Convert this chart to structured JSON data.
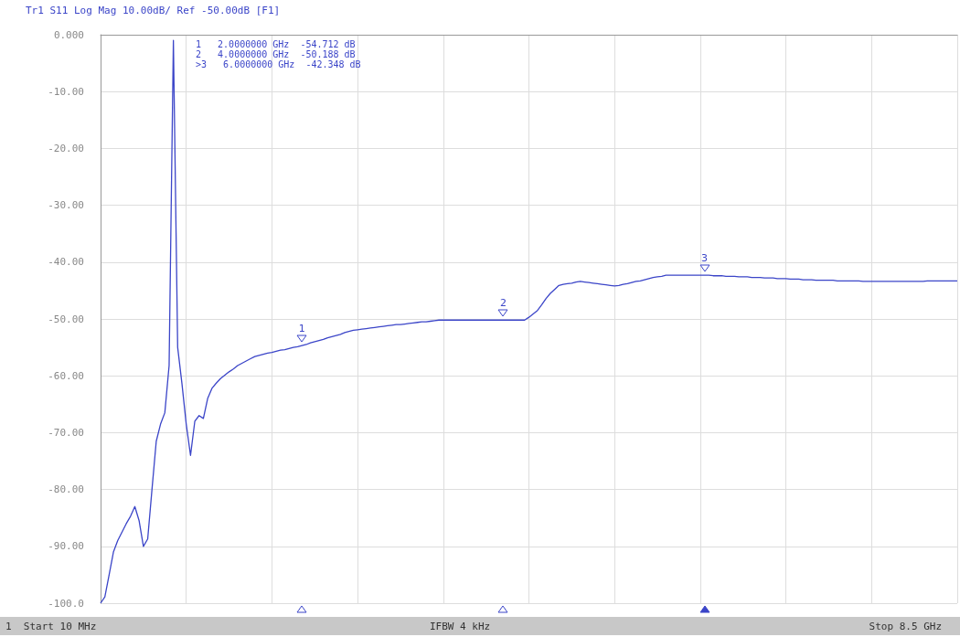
{
  "chart_data": {
    "type": "line",
    "categories": [
      null,
      null,
      null,
      null,
      null,
      null,
      null,
      null,
      null,
      null,
      null,
      null,
      null,
      null,
      null,
      null,
      null,
      null,
      null,
      null,
      null,
      null,
      null,
      null,
      null,
      null,
      null,
      null,
      null,
      null,
      null,
      null,
      null,
      null,
      null,
      null,
      null,
      null,
      null,
      null,
      null,
      null,
      null,
      null,
      null,
      null,
      null,
      null,
      null,
      null,
      null,
      null,
      null,
      null,
      null,
      null,
      null,
      null,
      null,
      null,
      null,
      null,
      null,
      null,
      null,
      null,
      null,
      null,
      null,
      null,
      null,
      null,
      null,
      null,
      null,
      null,
      null,
      null,
      null,
      null,
      null,
      null,
      null,
      null,
      null,
      null,
      null,
      null,
      null,
      null,
      null,
      null,
      null,
      null,
      null,
      null,
      null,
      null,
      null,
      null,
      null,
      null,
      null,
      null,
      null,
      null,
      null,
      null,
      null,
      null,
      null,
      null,
      null,
      null,
      null,
      null,
      null,
      null,
      null,
      null,
      null,
      null,
      null,
      null,
      null,
      null,
      null,
      null,
      null,
      null,
      null,
      null,
      null,
      null,
      null,
      null,
      null,
      null,
      null,
      null,
      null,
      null,
      null,
      null,
      null,
      null,
      null,
      null,
      null,
      null,
      null,
      null,
      null,
      null,
      null,
      null,
      null,
      null,
      null,
      null,
      null,
      null,
      null,
      null,
      null,
      null,
      null,
      null,
      null,
      null,
      null,
      null,
      null,
      null,
      null,
      null,
      null,
      null,
      null,
      null,
      null,
      null,
      null,
      null,
      null,
      null,
      null,
      null,
      null,
      null,
      null,
      null,
      null,
      null,
      null,
      null,
      null,
      null,
      null,
      null,
      null
    ],
    "series": [
      {
        "color": "#3b45c8",
        "values": [
          -100,
          -98.9,
          -95,
          -91,
          -89,
          -87.5,
          -86,
          -84.7,
          -83,
          -85.5,
          -90,
          -88.7,
          -80,
          -71.5,
          -68.5,
          -66.5,
          -58.2,
          -1,
          -55,
          -61.4,
          -68.5,
          -74,
          -68,
          -67,
          -67.5,
          -64,
          -62.2,
          -61.3,
          -60.5,
          -59.9,
          -59.3,
          -58.8,
          -58.2,
          -57.8,
          -57.4,
          -57.0,
          -56.6,
          -56.4,
          -56.2,
          -56.0,
          -55.9,
          -55.7,
          -55.5,
          -55.4,
          -55.2,
          -55.0,
          -54.9,
          -54.7,
          -54.5,
          -54.2,
          -54.0,
          -53.8,
          -53.6,
          -53.3,
          -53.1,
          -52.9,
          -52.7,
          -52.4,
          -52.2,
          -52.0,
          -51.9,
          -51.8,
          -51.7,
          -51.6,
          -51.5,
          -51.4,
          -51.3,
          -51.2,
          -51.1,
          -51.0,
          -51.0,
          -50.9,
          -50.8,
          -50.7,
          -50.6,
          -50.5,
          -50.5,
          -50.4,
          -50.3,
          -50.2,
          -50.2,
          -50.2,
          -50.2,
          -50.2,
          -50.2,
          -50.2,
          -50.2,
          -50.2,
          -50.2,
          -50.2,
          -50.2,
          -50.2,
          -50.2,
          -50.2,
          -50.2,
          -50.2,
          -50.2,
          -50.2,
          -50.2,
          -50.2,
          -49.7,
          -49.1,
          -48.5,
          -47.5,
          -46.4,
          -45.5,
          -44.8,
          -44.1,
          -43.9,
          -43.8,
          -43.7,
          -43.5,
          -43.4,
          -43.5,
          -43.6,
          -43.7,
          -43.8,
          -43.9,
          -44.0,
          -44.1,
          -44.2,
          -44.1,
          -43.9,
          -43.8,
          -43.6,
          -43.4,
          -43.3,
          -43.1,
          -42.9,
          -42.7,
          -42.6,
          -42.5,
          -42.3,
          -42.3,
          -42.3,
          -42.3,
          -42.3,
          -42.3,
          -42.3,
          -42.3,
          -42.3,
          -42.3,
          -42.3,
          -42.4,
          -42.4,
          -42.4,
          -42.5,
          -42.5,
          -42.5,
          -42.6,
          -42.6,
          -42.6,
          -42.7,
          -42.7,
          -42.7,
          -42.8,
          -42.8,
          -42.8,
          -42.9,
          -42.9,
          -42.9,
          -43.0,
          -43.0,
          -43.0,
          -43.1,
          -43.1,
          -43.1,
          -43.2,
          -43.2,
          -43.2,
          -43.2,
          -43.2,
          -43.3,
          -43.3,
          -43.3,
          -43.3,
          -43.3,
          -43.3,
          -43.4,
          -43.4,
          -43.4,
          -43.4,
          -43.4,
          -43.4,
          -43.4,
          -43.4,
          -43.4,
          -43.4,
          -43.4,
          -43.4,
          -43.4,
          -43.4,
          -43.4,
          -43.3,
          -43.3,
          -43.3,
          -43.3,
          -43.3,
          -43.3,
          -43.3,
          -43.3
        ]
      }
    ],
    "ylim": [
      -100,
      0
    ],
    "yticks": [
      {
        "value": 0,
        "label": "0.000"
      },
      {
        "value": -10,
        "label": "-10.00"
      },
      {
        "value": -20,
        "label": "-20.00"
      },
      {
        "value": -30,
        "label": "-30.00"
      },
      {
        "value": -40,
        "label": "-40.00"
      },
      {
        "value": -50,
        "label": "-50.00"
      },
      {
        "value": -60,
        "label": "-60.00"
      },
      {
        "value": -70,
        "label": "-70.00"
      },
      {
        "value": -80,
        "label": "-80.00"
      },
      {
        "value": -90,
        "label": "-90.00"
      },
      {
        "value": -100,
        "label": "-100.0"
      }
    ],
    "tick_labels": "y",
    "grid": true,
    "annotations": [
      "Tr1 S11 Log Mag 10.00dB/ Ref -50.00dB [F1]",
      "1   2.0000000 GHz  -54.712 dB",
      "2   4.0000000 GHz  -50.188 dB",
      ">3   6.0000000 GHz  -42.348 dB",
      "1  Start 10 MHz",
      "IFBW 4 kHz",
      "Stop 8.5 GHz",
      "1",
      "2",
      "3"
    ]
  }
}
